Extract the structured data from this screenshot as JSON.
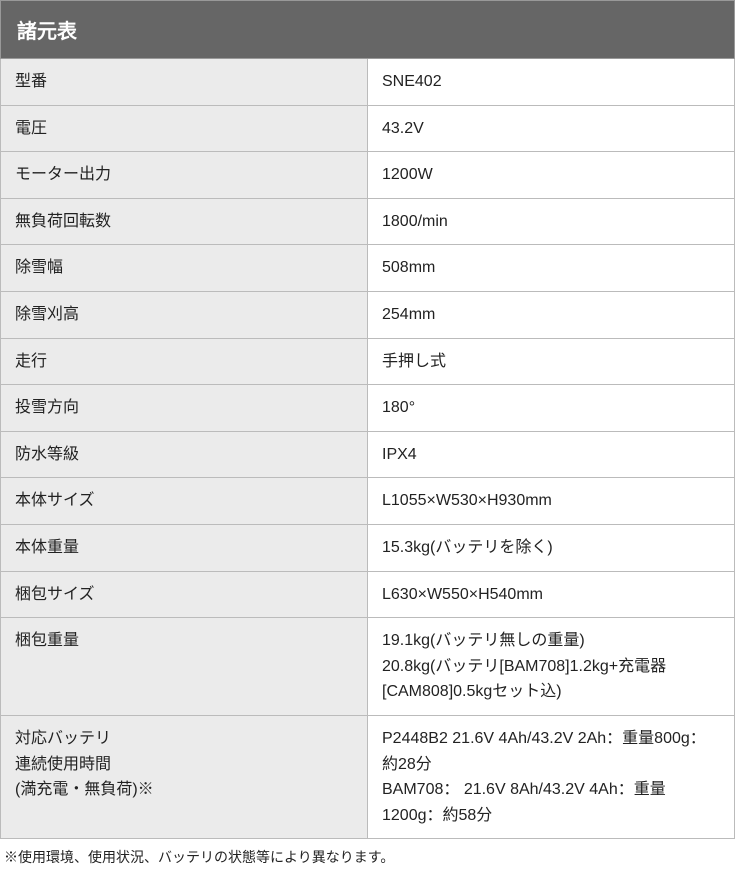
{
  "table": {
    "title": "諸元表",
    "rows": [
      {
        "label": "型番",
        "value": "SNE402"
      },
      {
        "label": "電圧",
        "value": "43.2V"
      },
      {
        "label": "モーター出力",
        "value": "1200W"
      },
      {
        "label": "無負荷回転数",
        "value": "1800/min"
      },
      {
        "label": "除雪幅",
        "value": "508mm"
      },
      {
        "label": "除雪刈高",
        "value": "254mm"
      },
      {
        "label": "走行",
        "value": "手押し式"
      },
      {
        "label": "投雪方向",
        "value": "180°"
      },
      {
        "label": "防水等級",
        "value": "IPX4"
      },
      {
        "label": "本体サイズ",
        "value": "L1055×W530×H930mm"
      },
      {
        "label": "本体重量",
        "value": "15.3kg(バッテリを除く)"
      },
      {
        "label": "梱包サイズ",
        "value": "L630×W550×H540mm"
      },
      {
        "label": "梱包重量",
        "value": "19.1kg(バッテリ無しの重量)\n20.8kg(バッテリ[BAM708]1.2kg+充電器[CAM808]0.5kgセット込)"
      },
      {
        "label": "対応バッテリ\n連続使用時間\n(満充電・無負荷)※",
        "value": "P2448B2 21.6V 4Ah/43.2V 2Ah：重量800g：約28分\nBAM708： 21.6V 8Ah/43.2V 4Ah：重量1200g：約58分"
      }
    ]
  },
  "footnote": "※使用環境、使用状況、バッテリの状態等により異なります。"
}
